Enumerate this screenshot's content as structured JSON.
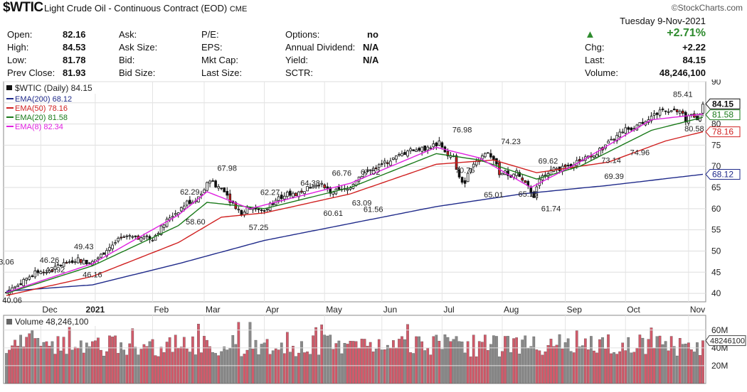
{
  "header": {
    "symbol": "$WTIC",
    "description": "Light Crude Oil - Continuous Contract (EOD)",
    "exchange": "CME",
    "brand": "©StockCharts.com"
  },
  "quote": {
    "open_label": "Open:",
    "open": "82.16",
    "high_label": "High:",
    "high": "84.53",
    "low_label": "Low:",
    "low": "81.78",
    "prev_close_label": "Prev Close:",
    "prev_close": "81.93",
    "ask_label": "Ask:",
    "ask_size_label": "Ask Size:",
    "bid_label": "Bid:",
    "bid_size_label": "Bid Size:",
    "pe_label": "P/E:",
    "eps_label": "EPS:",
    "mktcap_label": "Mkt Cap:",
    "last_size_label": "Last Size:",
    "options_label": "Options:",
    "options": "no",
    "dividend_label": "Annual Dividend:",
    "dividend": "N/A",
    "yield_label": "Yield:",
    "yield": "N/A",
    "sctr_label": "SCTR:"
  },
  "summary": {
    "date": "Tuesday  9-Nov-2021",
    "pct_change": "+2.71%",
    "chg_label": "Chg:",
    "chg": "+2.22",
    "last_label": "Last:",
    "last": "84.15",
    "volume_label": "Volume:",
    "volume": "48,246,100",
    "up_color": "#2e8b2e"
  },
  "chart_data": {
    "type": "candlestick",
    "price_label": "$WTIC (Daily) 84.15",
    "volume_label": "Volume 48,246,100",
    "ylim": [
      38,
      90
    ],
    "y_ticks": [
      40,
      45,
      50,
      55,
      60,
      65,
      70,
      75,
      80,
      85,
      90
    ],
    "volume_ticks": [
      "20M",
      "40M",
      "60M"
    ],
    "volume_last_label": "48246100",
    "x_labels": [
      "Dec",
      "2021",
      "Feb",
      "Mar",
      "Apr",
      "May",
      "Jun",
      "Jul",
      "Aug",
      "Sep",
      "Oct",
      "Nov"
    ],
    "legend": [
      {
        "name": "EMA(200) 68.12",
        "color": "#1f2a8a",
        "value": 68.12
      },
      {
        "name": "EMA(50) 78.16",
        "color": "#d02020",
        "value": 78.16
      },
      {
        "name": "EMA(20) 81.58",
        "color": "#1a7a1a",
        "value": 81.58
      },
      {
        "name": "EMA(8) 82.34",
        "color": "#e020e0",
        "value": 82.34
      }
    ],
    "last_price": 84.15,
    "close_series": [
      [
        0,
        40.2
      ],
      [
        3,
        42
      ],
      [
        6,
        42.8
      ],
      [
        9,
        44.5
      ],
      [
        12,
        45.5
      ],
      [
        15,
        45
      ],
      [
        18,
        46.5
      ],
      [
        22,
        47.5
      ],
      [
        25,
        48
      ],
      [
        28,
        47.2
      ],
      [
        30,
        47.4
      ],
      [
        33,
        49
      ],
      [
        36,
        51
      ],
      [
        39,
        52.5
      ],
      [
        42,
        53.5
      ],
      [
        45,
        53
      ],
      [
        48,
        53.2
      ],
      [
        51,
        53
      ],
      [
        54,
        55.5
      ],
      [
        57,
        58
      ],
      [
        60,
        59.5
      ],
      [
        63,
        61.5
      ],
      [
        66,
        61.8
      ],
      [
        69,
        64.5
      ],
      [
        71,
        67
      ],
      [
        73,
        65.5
      ],
      [
        76,
        64.5
      ],
      [
        78,
        62
      ],
      [
        80,
        60.5
      ],
      [
        82,
        59
      ],
      [
        84,
        60
      ],
      [
        86,
        60.5
      ],
      [
        88,
        59.5
      ],
      [
        90,
        59.5
      ],
      [
        92,
        61
      ],
      [
        95,
        62.5
      ],
      [
        98,
        63.5
      ],
      [
        101,
        63.5
      ],
      [
        104,
        64.5
      ],
      [
        107,
        65.5
      ],
      [
        110,
        66.2
      ],
      [
        113,
        64
      ],
      [
        116,
        64.2
      ],
      [
        119,
        64.5
      ],
      [
        122,
        67
      ],
      [
        125,
        68.5
      ],
      [
        128,
        69.5
      ],
      [
        131,
        70.5
      ],
      [
        134,
        71.5
      ],
      [
        137,
        72.5
      ],
      [
        140,
        73.5
      ],
      [
        143,
        74
      ],
      [
        146,
        74.2
      ],
      [
        149,
        75
      ],
      [
        151,
        75.5
      ],
      [
        153,
        73
      ],
      [
        156,
        72
      ],
      [
        158,
        67
      ],
      [
        160,
        66
      ],
      [
        162,
        70
      ],
      [
        164,
        71.5
      ],
      [
        166,
        72.5
      ],
      [
        168,
        73.5
      ],
      [
        170,
        71.5
      ],
      [
        172,
        68.5
      ],
      [
        174,
        68.5
      ],
      [
        176,
        67.5
      ],
      [
        178,
        68.5
      ],
      [
        180,
        66.5
      ],
      [
        182,
        65
      ],
      [
        184,
        63
      ],
      [
        186,
        66.5
      ],
      [
        188,
        68.5
      ],
      [
        190,
        69
      ],
      [
        192,
        69.5
      ],
      [
        194,
        69.5
      ],
      [
        197,
        70.5
      ],
      [
        200,
        71.5
      ],
      [
        203,
        72.5
      ],
      [
        206,
        73.2
      ],
      [
        209,
        75
      ],
      [
        212,
        76.5
      ],
      [
        215,
        78.5
      ],
      [
        218,
        79
      ],
      [
        221,
        80
      ],
      [
        224,
        81.5
      ],
      [
        227,
        82.5
      ],
      [
        230,
        83.5
      ],
      [
        233,
        83
      ],
      [
        235,
        83
      ],
      [
        237,
        81
      ],
      [
        239,
        82
      ],
      [
        241,
        81.5
      ],
      [
        243,
        84.15
      ]
    ],
    "ema200": [
      [
        0,
        40.5
      ],
      [
        30,
        42
      ],
      [
        60,
        47
      ],
      [
        90,
        52.5
      ],
      [
        120,
        56.5
      ],
      [
        150,
        60.5
      ],
      [
        180,
        63.5
      ],
      [
        210,
        65.5
      ],
      [
        243,
        68.12
      ]
    ],
    "ema50": [
      [
        0,
        39.5
      ],
      [
        30,
        44
      ],
      [
        60,
        52
      ],
      [
        75,
        58
      ],
      [
        90,
        59
      ],
      [
        120,
        63.5
      ],
      [
        150,
        70.5
      ],
      [
        170,
        71.5
      ],
      [
        185,
        68.5
      ],
      [
        210,
        71
      ],
      [
        230,
        76
      ],
      [
        243,
        78.16
      ]
    ],
    "ema20": [
      [
        0,
        40
      ],
      [
        30,
        46.5
      ],
      [
        60,
        56
      ],
      [
        70,
        61.5
      ],
      [
        90,
        60
      ],
      [
        120,
        65
      ],
      [
        150,
        73
      ],
      [
        165,
        71.5
      ],
      [
        185,
        67
      ],
      [
        200,
        70
      ],
      [
        225,
        78.5
      ],
      [
        243,
        81.58
      ]
    ],
    "ema8": [
      [
        0,
        40.2
      ],
      [
        30,
        47
      ],
      [
        60,
        58.5
      ],
      [
        70,
        64
      ],
      [
        85,
        60
      ],
      [
        120,
        66
      ],
      [
        150,
        74.5
      ],
      [
        165,
        72
      ],
      [
        183,
        65
      ],
      [
        200,
        71
      ],
      [
        225,
        81
      ],
      [
        243,
        82.34
      ]
    ],
    "annotations": [
      {
        "label": "3.06",
        "xi": 0,
        "price": 45.8
      },
      {
        "label": "40.06",
        "xi": 2,
        "price": 40.06
      },
      {
        "label": "46.26",
        "xi": 15,
        "price": 46.26
      },
      {
        "label": "43.92",
        "xi": 17,
        "price": 43.92
      },
      {
        "label": "49.43",
        "xi": 27,
        "price": 49.43
      },
      {
        "label": "46.16",
        "xi": 30,
        "price": 46.16
      },
      {
        "label": "62.29",
        "xi": 64,
        "price": 62.29
      },
      {
        "label": "58.60",
        "xi": 66,
        "price": 58.6
      },
      {
        "label": "67.98",
        "xi": 77,
        "price": 67.98
      },
      {
        "label": "62.27",
        "xi": 92,
        "price": 62.27
      },
      {
        "label": "57.25",
        "xi": 88,
        "price": 57.25
      },
      {
        "label": "64.38",
        "xi": 106,
        "price": 64.38
      },
      {
        "label": "60.61",
        "xi": 114,
        "price": 60.61
      },
      {
        "label": "66.76",
        "xi": 117,
        "price": 66.76
      },
      {
        "label": "67.02",
        "xi": 127,
        "price": 67.02
      },
      {
        "label": "63.09",
        "xi": 124,
        "price": 63.09
      },
      {
        "label": "61.56",
        "xi": 128,
        "price": 61.56
      },
      {
        "label": "76.98",
        "xi": 159,
        "price": 76.98
      },
      {
        "label": "70.76",
        "xi": 160,
        "price": 70.76
      },
      {
        "label": "65.01",
        "xi": 170,
        "price": 65.01
      },
      {
        "label": "74.23",
        "xi": 176,
        "price": 74.23
      },
      {
        "label": "65.15",
        "xi": 182,
        "price": 65.15
      },
      {
        "label": "69.62",
        "xi": 189,
        "price": 69.62
      },
      {
        "label": "61.74",
        "xi": 190,
        "price": 61.74
      },
      {
        "label": "73.14",
        "xi": 211,
        "price": 73.14
      },
      {
        "label": "69.39",
        "xi": 212,
        "price": 69.39
      },
      {
        "label": "74.96",
        "xi": 221,
        "price": 74.96
      },
      {
        "label": "85.41",
        "xi": 236,
        "price": 85.41
      },
      {
        "label": "80.58",
        "xi": 240,
        "price": 80.58
      }
    ]
  }
}
